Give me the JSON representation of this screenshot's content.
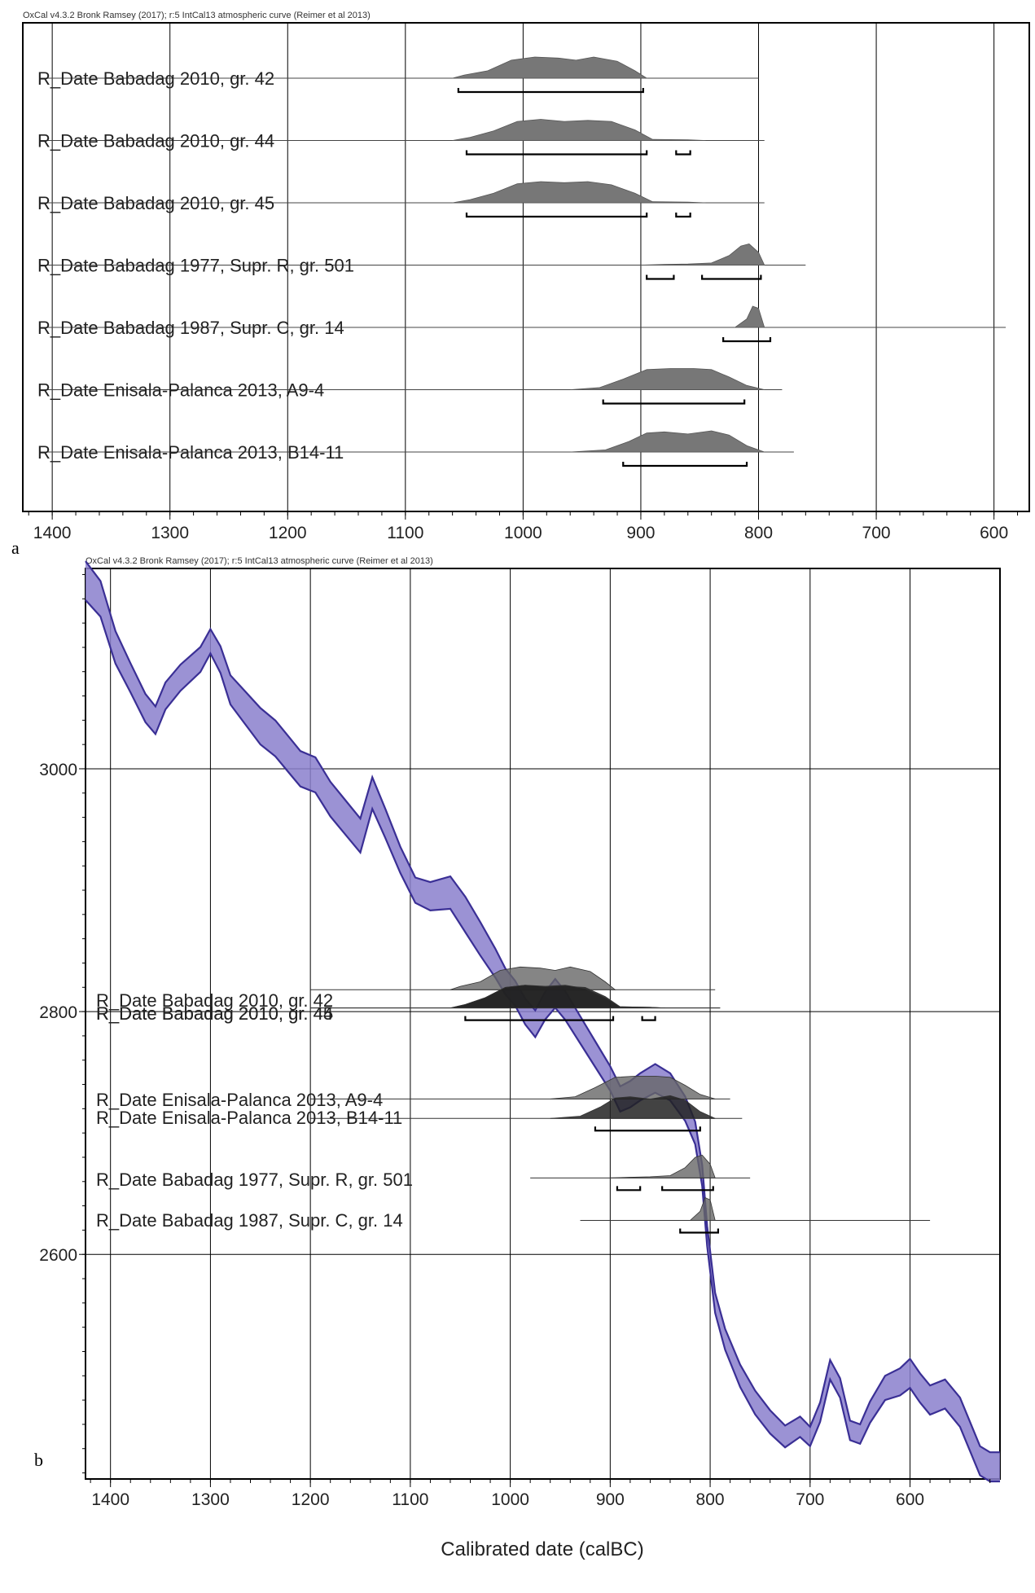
{
  "figure": {
    "panel_a_letter": "a",
    "panel_b_letter": "b"
  },
  "chart_data": [
    {
      "panel": "a",
      "type": "area",
      "subtitle": "OxCal v4.3.2 Bronk Ramsey (2017); r:5 IntCal13 atmospheric curve (Reimer et al 2013)",
      "xlabel": "",
      "xlim": [
        1425,
        570
      ],
      "x_reversed": true,
      "x_ticks": [
        1400,
        1300,
        1200,
        1100,
        1000,
        900,
        800,
        700,
        600
      ],
      "grid": true,
      "dates": [
        {
          "name": "R_Date Babadag 2010, gr. 42",
          "density": [
            [
              1060,
              0
            ],
            [
              1050,
              0.15
            ],
            [
              1030,
              0.35
            ],
            [
              1010,
              0.85
            ],
            [
              990,
              1
            ],
            [
              970,
              0.95
            ],
            [
              955,
              0.85
            ],
            [
              940,
              1
            ],
            [
              920,
              0.8
            ],
            [
              905,
              0.35
            ],
            [
              895,
              0
            ]
          ],
          "tail": [
            1200,
            800
          ],
          "range68": [
            [
              1055,
              898
            ]
          ]
        },
        {
          "name": "R_Date Babadag 2010, gr. 44",
          "density": [
            [
              1060,
              0
            ],
            [
              1045,
              0.15
            ],
            [
              1025,
              0.45
            ],
            [
              1005,
              0.9
            ],
            [
              985,
              1
            ],
            [
              965,
              0.9
            ],
            [
              945,
              0.95
            ],
            [
              925,
              0.9
            ],
            [
              905,
              0.5
            ],
            [
              890,
              0.05
            ],
            [
              860,
              0.03
            ],
            [
              845,
              0
            ]
          ],
          "tail": [
            1200,
            795
          ],
          "range68": [
            [
              1048,
              895
            ],
            [
              870,
              858
            ]
          ]
        },
        {
          "name": "R_Date Babadag 2010, gr. 45",
          "density": [
            [
              1060,
              0
            ],
            [
              1045,
              0.15
            ],
            [
              1025,
              0.45
            ],
            [
              1005,
              0.9
            ],
            [
              985,
              1
            ],
            [
              965,
              0.95
            ],
            [
              945,
              1
            ],
            [
              925,
              0.85
            ],
            [
              905,
              0.45
            ],
            [
              890,
              0.05
            ],
            [
              860,
              0.03
            ],
            [
              845,
              0
            ]
          ],
          "tail": [
            1200,
            795
          ],
          "range68": [
            [
              1048,
              895
            ],
            [
              870,
              858
            ]
          ]
        },
        {
          "name": "R_Date Babadag 1977, Supr. R, gr. 501",
          "density": [
            [
              900,
              0
            ],
            [
              880,
              0.03
            ],
            [
              860,
              0.05
            ],
            [
              840,
              0.1
            ],
            [
              825,
              0.45
            ],
            [
              815,
              0.9
            ],
            [
              808,
              1
            ],
            [
              800,
              0.6
            ],
            [
              795,
              0
            ]
          ],
          "tail": [
            980,
            760
          ],
          "range68": [
            [
              895,
              872
            ],
            [
              848,
              798
            ]
          ]
        },
        {
          "name": "R_Date Babadag 1987, Supr. C, gr. 14",
          "density": [
            [
              820,
              0
            ],
            [
              810,
              0.4
            ],
            [
              805,
              1
            ],
            [
              800,
              0.9
            ],
            [
              795,
              0
            ]
          ],
          "tail": [
            930,
            590
          ],
          "range68": [
            [
              830,
              790
            ]
          ]
        },
        {
          "name": "R_Date Enisala-Palanca 2013, A9-4",
          "density": [
            [
              960,
              0
            ],
            [
              935,
              0.1
            ],
            [
              915,
              0.5
            ],
            [
              895,
              0.95
            ],
            [
              875,
              1
            ],
            [
              855,
              1
            ],
            [
              840,
              0.95
            ],
            [
              825,
              0.6
            ],
            [
              810,
              0.2
            ],
            [
              795,
              0
            ]
          ],
          "tail": [
            1200,
            780
          ],
          "range68": [
            [
              932,
              812
            ]
          ]
        },
        {
          "name": "R_Date Enisala-Palanca 2013, B14-11",
          "density": [
            [
              960,
              0
            ],
            [
              930,
              0.1
            ],
            [
              910,
              0.5
            ],
            [
              895,
              0.9
            ],
            [
              880,
              0.95
            ],
            [
              860,
              0.85
            ],
            [
              840,
              1
            ],
            [
              825,
              0.8
            ],
            [
              810,
              0.3
            ],
            [
              795,
              0
            ]
          ],
          "tail": [
            1200,
            770
          ],
          "range68": [
            [
              915,
              810
            ]
          ]
        }
      ]
    },
    {
      "panel": "b",
      "type": "line",
      "subtitle": "OxCal v4.3.2 Bronk Ramsey (2017); r:5 IntCal13 atmospheric curve (Reimer et al 2013)",
      "xlabel": "Calibrated date (calBC)",
      "ylabel": "",
      "xlim": [
        1425,
        510
      ],
      "ylim": [
        2415,
        3165
      ],
      "x_reversed": true,
      "x_ticks": [
        1400,
        1300,
        1200,
        1100,
        1000,
        900,
        800,
        700,
        600
      ],
      "y_ticks": [
        2600,
        2800,
        3000
      ],
      "grid": true,
      "curve_color": "#8a7fcc",
      "curve_edge_color": "#3a2f95",
      "curve": [
        [
          1425,
          3155
        ],
        [
          1410,
          3140
        ],
        [
          1395,
          3100
        ],
        [
          1380,
          3075
        ],
        [
          1365,
          3050
        ],
        [
          1355,
          3040
        ],
        [
          1345,
          3060
        ],
        [
          1330,
          3075
        ],
        [
          1310,
          3090
        ],
        [
          1300,
          3105
        ],
        [
          1290,
          3090
        ],
        [
          1280,
          3065
        ],
        [
          1265,
          3050
        ],
        [
          1250,
          3035
        ],
        [
          1235,
          3025
        ],
        [
          1220,
          3010
        ],
        [
          1210,
          3000
        ],
        [
          1195,
          2995
        ],
        [
          1180,
          2975
        ],
        [
          1165,
          2960
        ],
        [
          1150,
          2945
        ],
        [
          1138,
          2980
        ],
        [
          1125,
          2955
        ],
        [
          1110,
          2925
        ],
        [
          1095,
          2900
        ],
        [
          1080,
          2895
        ],
        [
          1060,
          2898
        ],
        [
          1045,
          2880
        ],
        [
          1030,
          2860
        ],
        [
          1015,
          2840
        ],
        [
          1005,
          2825
        ],
        [
          995,
          2815
        ],
        [
          985,
          2800
        ],
        [
          975,
          2790
        ],
        [
          965,
          2805
        ],
        [
          955,
          2815
        ],
        [
          945,
          2805
        ],
        [
          930,
          2785
        ],
        [
          915,
          2765
        ],
        [
          900,
          2745
        ],
        [
          890,
          2728
        ],
        [
          880,
          2732
        ],
        [
          870,
          2738
        ],
        [
          855,
          2745
        ],
        [
          840,
          2738
        ],
        [
          825,
          2720
        ],
        [
          815,
          2700
        ],
        [
          808,
          2665
        ],
        [
          803,
          2615
        ],
        [
          795,
          2560
        ],
        [
          785,
          2530
        ],
        [
          770,
          2500
        ],
        [
          755,
          2478
        ],
        [
          740,
          2462
        ],
        [
          725,
          2450
        ],
        [
          710,
          2458
        ],
        [
          700,
          2450
        ],
        [
          690,
          2470
        ],
        [
          680,
          2505
        ],
        [
          670,
          2490
        ],
        [
          660,
          2455
        ],
        [
          650,
          2452
        ],
        [
          640,
          2470
        ],
        [
          625,
          2490
        ],
        [
          610,
          2495
        ],
        [
          600,
          2502
        ],
        [
          590,
          2490
        ],
        [
          580,
          2480
        ],
        [
          565,
          2485
        ],
        [
          550,
          2470
        ],
        [
          540,
          2450
        ],
        [
          530,
          2430
        ],
        [
          520,
          2425
        ],
        [
          510,
          2425
        ]
      ],
      "curve_half_width": [
        [
          1425,
          16
        ],
        [
          1380,
          12
        ],
        [
          1300,
          10
        ],
        [
          1250,
          15
        ],
        [
          1150,
          14
        ],
        [
          1100,
          10
        ],
        [
          1040,
          15
        ],
        [
          1000,
          10
        ],
        [
          950,
          12
        ],
        [
          900,
          10
        ],
        [
          850,
          12
        ],
        [
          800,
          8
        ],
        [
          750,
          10
        ],
        [
          700,
          8
        ],
        [
          650,
          8
        ],
        [
          600,
          12
        ],
        [
          550,
          12
        ],
        [
          510,
          12
        ]
      ],
      "dates": [
        {
          "name": "R_Date Babadag 2010, gr. 42",
          "y": 2818,
          "tail": [
            1200,
            795
          ],
          "range68": []
        },
        {
          "name": "R_Date Babadag 2010, gr. 44",
          "y": 2803,
          "tail": [
            1200,
            790
          ],
          "range68": [
            [
              1045,
              897
            ]
          ]
        },
        {
          "name": "R_Date Babadag 2010, gr. 45",
          "y": 2803,
          "tail": [
            1200,
            790
          ],
          "range68": [
            [
              868,
              855
            ]
          ]
        },
        {
          "name": "R_Date Enisala-Palanca 2013, A9-4",
          "y": 2728,
          "tail": [
            1200,
            780
          ],
          "range68": []
        },
        {
          "name": "R_Date Enisala-Palanca 2013, B14-11",
          "y": 2712,
          "tail": [
            1200,
            768
          ],
          "range68": [
            [
              915,
              810
            ]
          ]
        },
        {
          "name": "R_Date Babadag 1977, Supr. R, gr. 501",
          "y": 2663,
          "tail": [
            980,
            760
          ],
          "range68": [
            [
              893,
              870
            ],
            [
              848,
              797
            ]
          ]
        },
        {
          "name": "R_Date Babadag 1987, Supr. C, gr. 14",
          "y": 2628,
          "tail": [
            930,
            580
          ],
          "range68": [
            [
              830,
              792
            ]
          ]
        }
      ],
      "label_texts": [
        "R_Date Babadag 2010, gr. 42",
        "R_Date Babadag 2010, gr. 44",
        "R_Date Babadag 2010, gr. 45",
        "R_Date Enisala-Palanca 2013, A9-4",
        "R_Date Enisala-Palanca 2013, B14-11",
        "R_Date Babadag 1977, Supr. R, gr. 501",
        "R_Date Babadag 1987, Supr. C, gr. 14"
      ]
    }
  ]
}
